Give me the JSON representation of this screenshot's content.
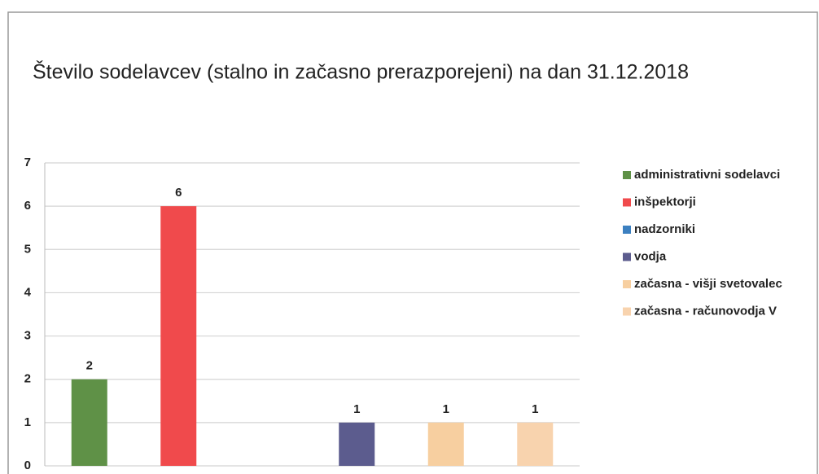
{
  "chart_data": {
    "type": "bar",
    "title": "Število sodelavcev (stalno in začasno prerazporejeni) na dan 31.12.2018",
    "categories": [
      null
    ],
    "series": [
      {
        "name": "administrativni sodelavci",
        "color": "#5f9147",
        "values": [
          2
        ]
      },
      {
        "name": "inšpektorji",
        "color": "#f04a4c",
        "values": [
          6
        ]
      },
      {
        "name": "nadzorniki",
        "color": "#3c80c0",
        "values": [
          null
        ]
      },
      {
        "name": "vodja",
        "color": "#5c5c8e",
        "values": [
          1
        ]
      },
      {
        "name": "začasna - višji svetovalec",
        "color": "#f7cfa0",
        "values": [
          1
        ]
      },
      {
        "name": "začasna - računovodja V",
        "color": "#f8d3ae",
        "values": [
          1
        ]
      }
    ],
    "ylim": [
      0,
      7
    ],
    "yticks": [
      0,
      1,
      2,
      3,
      4,
      5,
      6,
      7
    ],
    "grid": true,
    "legend": "right"
  }
}
